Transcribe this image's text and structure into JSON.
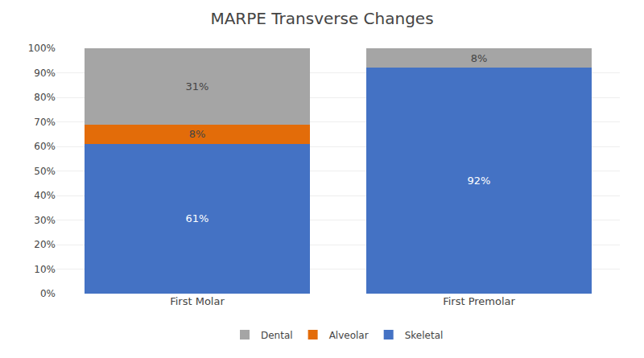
{
  "chart_data": {
    "type": "bar",
    "stacked": true,
    "title": "MARPE Transverse Changes",
    "categories": [
      "First Molar",
      "First Premolar"
    ],
    "series": [
      {
        "name": "Skeletal",
        "color": "#4472C4",
        "values": [
          0.61,
          0.92
        ],
        "value_labels": [
          "61%",
          "92%"
        ]
      },
      {
        "name": "Alveolar",
        "color": "#E36C09",
        "values": [
          0.08,
          0
        ],
        "value_labels": [
          "8%",
          null
        ]
      },
      {
        "name": "Dental",
        "color": "#A5A5A5",
        "values": [
          0.31,
          0.08
        ],
        "value_labels": [
          "31%",
          "8%"
        ]
      }
    ],
    "ylim": [
      0,
      1.0
    ],
    "yticks": [
      {
        "value": 0.0,
        "label": "0%"
      },
      {
        "value": 0.1,
        "label": "10%"
      },
      {
        "value": 0.2,
        "label": "20%"
      },
      {
        "value": 0.3,
        "label": "30%"
      },
      {
        "value": 0.4,
        "label": "40%"
      },
      {
        "value": 0.5,
        "label": "50%"
      },
      {
        "value": 0.6,
        "label": "60%"
      },
      {
        "value": 0.7,
        "label": "70%"
      },
      {
        "value": 0.8,
        "label": "80%"
      },
      {
        "value": 0.9,
        "label": "90%"
      },
      {
        "value": 1.0,
        "label": "100%"
      }
    ],
    "grid": true,
    "legend": "bottom",
    "data_labels": true
  }
}
